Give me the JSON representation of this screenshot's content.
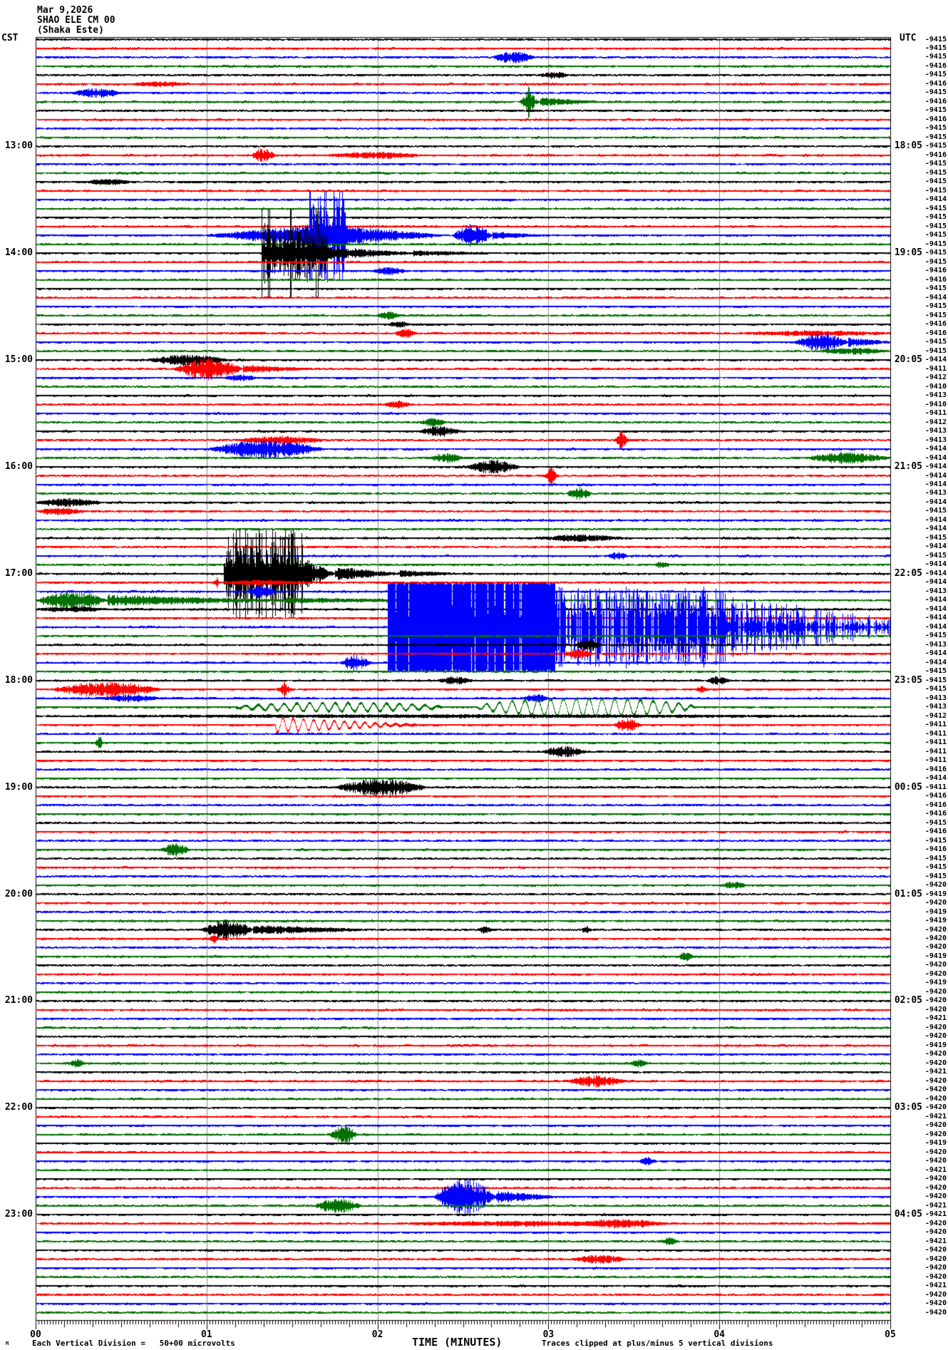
{
  "header": {
    "date": "Mar 9,2026",
    "station": "SHAO ELE CM 00",
    "location": "(Shaka Este)",
    "left_tz": "CST",
    "right_tz": "UTC"
  },
  "footer": {
    "left_mark": "M",
    "scale_note": "Each Vertical Division =   50+00 microvolts",
    "axis_title": "TIME (MINUTES)",
    "clip_note": "Traces clipped at plus/minus 5 vertical divisions"
  },
  "axis": {
    "minute_labels": [
      "00",
      "01",
      "02",
      "03",
      "04",
      "05"
    ]
  },
  "chart_data": {
    "type": "line",
    "subtype": "helicorder-seismogram",
    "title": "SHAO ELE CM 00 (Shaka Este) Mar 9,2026",
    "xlabel": "TIME (MINUTES)",
    "x_range_minutes": [
      0,
      5
    ],
    "rows": 144,
    "minutes_per_row": 5,
    "start_time_left": "12:00",
    "clip_divisions": 5,
    "grid_minutes": [
      1,
      2,
      3,
      4
    ],
    "row_color_cycle": [
      "#000000",
      "#ff0000",
      "#0000ff",
      "#007000"
    ],
    "left_hour_labels": [
      {
        "row": 12,
        "label": "13:00"
      },
      {
        "row": 24,
        "label": "14:00"
      },
      {
        "row": 36,
        "label": "15:00"
      },
      {
        "row": 48,
        "label": "16:00"
      },
      {
        "row": 60,
        "label": "17:00"
      },
      {
        "row": 72,
        "label": "18:00"
      },
      {
        "row": 84,
        "label": "19:00"
      },
      {
        "row": 96,
        "label": "20:00"
      },
      {
        "row": 108,
        "label": "21:00"
      },
      {
        "row": 120,
        "label": "22:00"
      },
      {
        "row": 132,
        "label": "23:00"
      }
    ],
    "right_hour_labels": [
      {
        "row": 12,
        "label": "18:05"
      },
      {
        "row": 24,
        "label": "19:05"
      },
      {
        "row": 36,
        "label": "20:05"
      },
      {
        "row": 48,
        "label": "21:05"
      },
      {
        "row": 60,
        "label": "22:05"
      },
      {
        "row": 72,
        "label": "23:05"
      },
      {
        "row": 84,
        "label": "00:05"
      },
      {
        "row": 96,
        "label": "01:05"
      },
      {
        "row": 108,
        "label": "02:05"
      },
      {
        "row": 120,
        "label": "03:05"
      },
      {
        "row": 132,
        "label": "04:05"
      }
    ],
    "bias_values": [
      -9415,
      -9415,
      -9415,
      -9416,
      -9415,
      -9416,
      -9415,
      -9416,
      -9415,
      -9416,
      -9415,
      -9415,
      -9415,
      -9416,
      -9415,
      -9415,
      -9415,
      -9415,
      -9414,
      -9415,
      -9415,
      -9415,
      -9415,
      -9415,
      -9415,
      -9415,
      -9416,
      -9416,
      -9415,
      -9414,
      -9415,
      -9415,
      -9416,
      -9416,
      -9415,
      -9415,
      -9414,
      -9411,
      -9412,
      -9410,
      -9413,
      -9410,
      -9411,
      -9412,
      -9413,
      -9413,
      -9414,
      -9414,
      -9414,
      -9414,
      -9414,
      -9413,
      -9414,
      -9415,
      -9414,
      -9414,
      -9415,
      -9414,
      -9415,
      -9414,
      -9414,
      -9414,
      -9413,
      -9414,
      -9414,
      -9414,
      -9414,
      -9415,
      -9413,
      -9414,
      -9414,
      -9415,
      -9415,
      -9415,
      -9413,
      -9413,
      -9412,
      -9411,
      -9411,
      -9411,
      -9411,
      -9411,
      -9416,
      -9414,
      -9411,
      -9416,
      -9416,
      -9416,
      -9415,
      -9416,
      -9415,
      -9416,
      -9415,
      -9415,
      -9415,
      -9420,
      -9419,
      -9420,
      -9419,
      -9419,
      -9420,
      -9420,
      -9420,
      -9419,
      -9420,
      -9420,
      -9419,
      -9420,
      -9420,
      -9420,
      -9421,
      -9420,
      -9420,
      -9419,
      -9420,
      -9420,
      -9421,
      -9420,
      -9420,
      -9420,
      -9420,
      -9421,
      -9420,
      -9420,
      -9419,
      -9420,
      -9420,
      -9421,
      -9420,
      -9420,
      -9420,
      -9421,
      -9421,
      -9420,
      -9420,
      -9421,
      -9420,
      -9420,
      -9420,
      -9420,
      -9421,
      -9420,
      -9420,
      -9420
    ],
    "events": [
      [
        2,
        2.67,
        2.92,
        7,
        "burst"
      ],
      [
        4,
        2.94,
        3.12,
        4,
        "burst"
      ],
      [
        5,
        0.56,
        0.9,
        3,
        "burst"
      ],
      [
        6,
        0.21,
        0.5,
        6,
        "burst"
      ],
      [
        7,
        2.82,
        2.95,
        26,
        "spike"
      ],
      [
        7,
        2.95,
        3.3,
        5,
        "decay"
      ],
      [
        13,
        1.26,
        1.4,
        9,
        "burst"
      ],
      [
        13,
        1.71,
        2.25,
        4,
        "burst"
      ],
      [
        16,
        0.3,
        0.55,
        4,
        "burst"
      ],
      [
        22,
        1.0,
        1.6,
        14,
        "ramp"
      ],
      [
        22,
        1.6,
        1.81,
        55,
        "clip"
      ],
      [
        22,
        1.81,
        2.38,
        13,
        "decay"
      ],
      [
        22,
        2.44,
        2.67,
        15,
        "burst"
      ],
      [
        22,
        2.67,
        2.96,
        5,
        "decay"
      ],
      [
        24,
        1.32,
        1.71,
        42,
        "clip"
      ],
      [
        24,
        1.71,
        2.21,
        8,
        "decay"
      ],
      [
        24,
        2.21,
        2.71,
        3,
        "decay"
      ],
      [
        26,
        1.97,
        2.17,
        5,
        "burst"
      ],
      [
        31,
        2.0,
        2.13,
        5,
        "burst"
      ],
      [
        32,
        2.06,
        2.19,
        4,
        "burst"
      ],
      [
        33,
        2.1,
        2.23,
        6,
        "burst"
      ],
      [
        33,
        4.12,
        5.0,
        3,
        "burst"
      ],
      [
        34,
        4.44,
        4.75,
        12,
        "burst"
      ],
      [
        34,
        4.75,
        5.0,
        6,
        "decay"
      ],
      [
        35,
        4.58,
        5.0,
        4,
        "burst"
      ],
      [
        36,
        0.65,
        1.13,
        7,
        "burst"
      ],
      [
        37,
        0.81,
        1.21,
        15,
        "burst"
      ],
      [
        37,
        1.21,
        1.58,
        5,
        "decay"
      ],
      [
        38,
        1.1,
        1.29,
        4,
        "burst"
      ],
      [
        41,
        2.04,
        2.19,
        5,
        "burst"
      ],
      [
        43,
        2.24,
        2.4,
        5,
        "burst"
      ],
      [
        44,
        2.25,
        2.48,
        7,
        "burst"
      ],
      [
        45,
        1.17,
        1.69,
        5,
        "burst"
      ],
      [
        45,
        3.37,
        3.48,
        16,
        "spike"
      ],
      [
        46,
        1.01,
        1.69,
        12,
        "burst"
      ],
      [
        47,
        2.31,
        2.5,
        6,
        "burst"
      ],
      [
        47,
        4.5,
        5.0,
        7,
        "burst"
      ],
      [
        48,
        2.52,
        2.83,
        9,
        "burst"
      ],
      [
        49,
        2.97,
        3.06,
        18,
        "spike"
      ],
      [
        51,
        3.1,
        3.25,
        8,
        "burst"
      ],
      [
        52,
        0.0,
        0.39,
        5,
        "burst"
      ],
      [
        53,
        0.0,
        0.29,
        4,
        "burst"
      ],
      [
        56,
        2.91,
        3.46,
        4,
        "burst"
      ],
      [
        58,
        3.35,
        3.46,
        5,
        "burst"
      ],
      [
        59,
        3.62,
        3.71,
        4,
        "burst"
      ],
      [
        60,
        1.1,
        1.56,
        58,
        "clip"
      ],
      [
        60,
        1.56,
        1.75,
        22,
        "decay"
      ],
      [
        60,
        1.75,
        2.13,
        9,
        "decay"
      ],
      [
        60,
        2.13,
        2.46,
        4,
        "decay"
      ],
      [
        61,
        1.03,
        1.08,
        10,
        "spike"
      ],
      [
        61,
        1.08,
        1.58,
        3,
        "burst"
      ],
      [
        62,
        1.23,
        1.4,
        9,
        "burst"
      ],
      [
        63,
        0.0,
        0.42,
        13,
        "burst"
      ],
      [
        63,
        0.42,
        1.46,
        7,
        "decay"
      ],
      [
        63,
        1.46,
        2.29,
        3,
        "decay"
      ],
      [
        64,
        0.0,
        0.42,
        3,
        "burst"
      ],
      [
        66,
        2.06,
        3.04,
        62,
        "solid"
      ],
      [
        66,
        3.04,
        4.04,
        56,
        "sparse"
      ],
      [
        66,
        4.04,
        5.0,
        30,
        "spiketrain"
      ],
      [
        68,
        3.15,
        3.31,
        8,
        "burst"
      ],
      [
        69,
        3.08,
        3.25,
        6,
        "burst"
      ],
      [
        70,
        1.78,
        1.96,
        10,
        "burst"
      ],
      [
        72,
        2.35,
        2.56,
        5,
        "burst"
      ],
      [
        72,
        3.92,
        4.06,
        5,
        "burst"
      ],
      [
        73,
        0.08,
        0.73,
        10,
        "burst"
      ],
      [
        73,
        1.4,
        1.51,
        12,
        "spike"
      ],
      [
        73,
        3.85,
        3.94,
        7,
        "spike"
      ],
      [
        74,
        0.38,
        0.75,
        4,
        "burst"
      ],
      [
        74,
        2.85,
        3.0,
        5,
        "burst"
      ],
      [
        75,
        1.17,
        2.38,
        6,
        "wave"
      ],
      [
        75,
        2.58,
        3.85,
        12,
        "wave"
      ],
      [
        76,
        0.0,
        5.0,
        1.5,
        "burst"
      ],
      [
        77,
        1.4,
        2.23,
        10,
        "wavedecay"
      ],
      [
        77,
        3.38,
        3.54,
        9,
        "burst"
      ],
      [
        79,
        0.34,
        0.4,
        18,
        "spike"
      ],
      [
        80,
        2.96,
        3.22,
        7,
        "burst"
      ],
      [
        84,
        1.75,
        2.29,
        12,
        "burst"
      ],
      [
        91,
        0.73,
        0.9,
        9,
        "burst"
      ],
      [
        95,
        4.01,
        4.15,
        5,
        "burst"
      ],
      [
        100,
        0.97,
        1.27,
        14,
        "burst"
      ],
      [
        100,
        1.27,
        1.96,
        6,
        "decay"
      ],
      [
        100,
        2.58,
        2.67,
        4,
        "burst"
      ],
      [
        100,
        3.19,
        3.25,
        4,
        "burst"
      ],
      [
        101,
        1.0,
        1.08,
        7,
        "spike"
      ],
      [
        103,
        3.75,
        3.85,
        5,
        "burst"
      ],
      [
        115,
        0.2,
        0.28,
        5,
        "burst"
      ],
      [
        115,
        3.48,
        3.58,
        5,
        "burst"
      ],
      [
        117,
        3.1,
        3.46,
        7,
        "burst"
      ],
      [
        123,
        1.72,
        1.88,
        12,
        "burst"
      ],
      [
        126,
        3.53,
        3.63,
        5,
        "burst"
      ],
      [
        130,
        2.33,
        2.69,
        26,
        "burst"
      ],
      [
        130,
        2.69,
        3.06,
        8,
        "decay"
      ],
      [
        131,
        1.63,
        1.9,
        10,
        "burst"
      ],
      [
        133,
        2.13,
        3.54,
        3,
        "burst"
      ],
      [
        133,
        3.21,
        3.69,
        5,
        "burst"
      ],
      [
        135,
        3.66,
        3.76,
        5,
        "burst"
      ],
      [
        137,
        3.13,
        3.46,
        5,
        "burst"
      ]
    ]
  }
}
